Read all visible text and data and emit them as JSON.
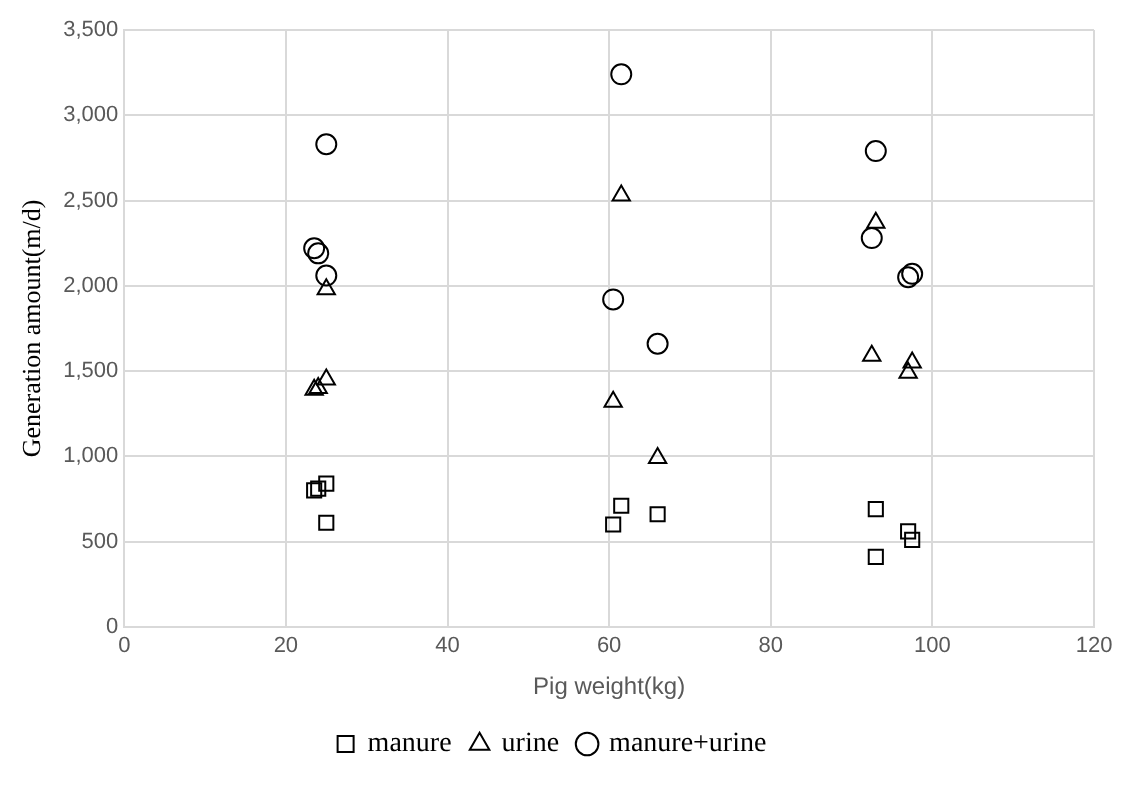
{
  "chart_data": {
    "type": "scatter",
    "xlabel": "Pig weight(kg)",
    "ylabel": "Generation amount(m/d)",
    "xlim": [
      0,
      120
    ],
    "xticks": [
      0,
      20,
      40,
      60,
      80,
      100,
      120
    ],
    "ylim": [
      0,
      3500
    ],
    "yticks": [
      0,
      {
        "value": 500,
        "label": "500"
      },
      {
        "value": 1000,
        "label": "1,000"
      },
      {
        "value": 1500,
        "label": "1,500"
      },
      {
        "value": 2000,
        "label": "2,000"
      },
      {
        "value": 2500,
        "label": "2,500"
      },
      {
        "value": 3000,
        "label": "3,000"
      },
      {
        "value": 3500,
        "label": "3,500"
      }
    ],
    "grid": true,
    "legend": "bottom",
    "series": [
      {
        "name": "manure",
        "color": "#000000",
        "marker": "square",
        "x": [
          24,
          23.5,
          25,
          25,
          60.5,
          61.5,
          66,
          93,
          93,
          97,
          97.5
        ],
        "values": [
          810,
          800,
          840,
          610,
          600,
          710,
          660,
          690,
          410,
          560,
          510
        ]
      },
      {
        "name": "urine",
        "color": "#000000",
        "marker": "triangle",
        "x": [
          23.5,
          24,
          25,
          25,
          60.5,
          61.5,
          66,
          92.5,
          93,
          97,
          97.5
        ],
        "values": [
          1390,
          1400,
          1450,
          1980,
          1320,
          2530,
          990,
          1590,
          2370,
          1490,
          1550
        ]
      },
      {
        "name": "manure+urine",
        "color": "#000000",
        "marker": "circle",
        "x": [
          23.5,
          24,
          25,
          25,
          60.5,
          61.5,
          66,
          92.5,
          93,
          97,
          97.5
        ],
        "values": [
          2220,
          2190,
          2060,
          2830,
          1920,
          3240,
          1660,
          2280,
          2790,
          2050,
          2070
        ]
      }
    ]
  }
}
